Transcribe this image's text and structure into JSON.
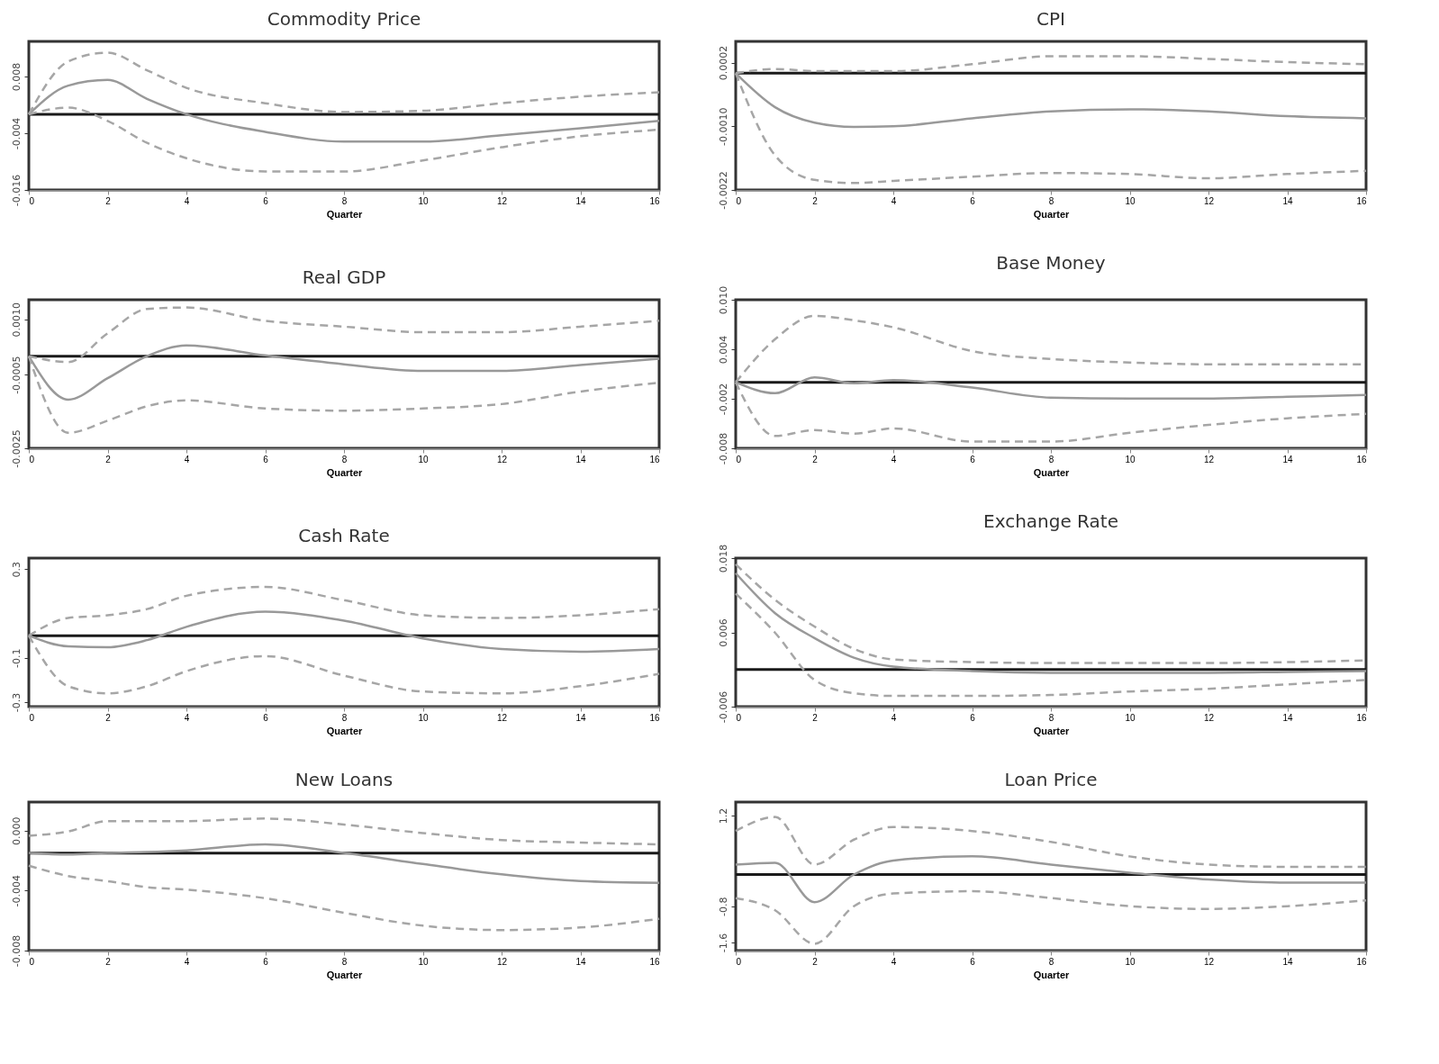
{
  "chart_data": [
    {
      "type": "line",
      "title": "Commodity Price",
      "xlabel": "Quarter",
      "x": [
        0,
        1,
        2,
        3,
        4,
        6,
        8,
        10,
        12,
        14,
        16
      ],
      "xlim": [
        0,
        16
      ],
      "xticks": [
        0,
        2,
        4,
        6,
        8,
        10,
        12,
        14,
        16
      ],
      "ylim": [
        -0.016,
        0.0154
      ],
      "yticks": [
        0.008,
        -0.004,
        -0.016
      ],
      "ref_lines": [
        {
          "axis": "y",
          "value": 0,
          "color": "#1a1a1a"
        }
      ],
      "series": [
        {
          "color": "#999999",
          "line_style": "solid",
          "values": [
            0,
            0.00605,
            0.00725,
            0.00326,
            0,
            -0.00372,
            -0.00577,
            -0.00577,
            -0.00446,
            -0.00298,
            -0.0014
          ]
        },
        {
          "color": "#a6a6a6",
          "line_style": "dashed",
          "values": [
            0,
            0.01116,
            0.01302,
            0.0093,
            0.00558,
            0.00233,
            0.00047,
            0.00074,
            0.00233,
            0.00372,
            0.00465
          ]
        },
        {
          "color": "#a6a6a6",
          "line_style": "dashed",
          "values": [
            0,
            0.0014,
            -0.0014,
            -0.00605,
            -0.0093,
            -0.01209,
            -0.01209,
            -0.00977,
            -0.00698,
            -0.00465,
            -0.00326
          ]
        }
      ]
    },
    {
      "type": "line",
      "title": "CPI",
      "xlabel": "Quarter",
      "x": [
        0,
        1,
        2,
        3,
        4,
        6,
        8,
        10,
        12,
        14,
        16
      ],
      "xlim": [
        0,
        16
      ],
      "xticks": [
        0,
        2,
        4,
        6,
        8,
        10,
        12,
        14,
        16
      ],
      "ylim": [
        -0.0022,
        0.0006
      ],
      "yticks": [
        0.0002,
        {
          "value": -0.001,
          "label": "-0.0010"
        },
        -0.0022
      ],
      "ref_lines": [
        {
          "axis": "y",
          "value": 0,
          "color": "#1a1a1a"
        }
      ],
      "series": [
        {
          "color": "#999999",
          "line_style": "solid",
          "values": [
            0,
            -0.00064,
            -0.00093,
            -0.00101,
            -0.001,
            -0.00085,
            -0.00072,
            -0.00068,
            -0.00072,
            -0.00081,
            -0.00085
          ]
        },
        {
          "color": "#a6a6a6",
          "line_style": "dashed",
          "values": [
            0,
            8e-05,
            4e-05,
            4e-05,
            4e-05,
            0.00017,
            0.00032,
            0.00032,
            0.00027,
            0.00021,
            0.00017
          ]
        },
        {
          "color": "#a6a6a6",
          "line_style": "dashed",
          "values": [
            0,
            -0.00155,
            -0.00201,
            -0.00207,
            -0.00203,
            -0.00195,
            -0.00188,
            -0.0019,
            -0.00198,
            -0.0019,
            -0.00184
          ]
        }
      ]
    },
    {
      "type": "line",
      "title": "Real GDP",
      "xlabel": "Quarter",
      "x": [
        0,
        1,
        2,
        3,
        4,
        6,
        8,
        10,
        12,
        14,
        16
      ],
      "xlim": [
        0,
        16
      ],
      "xticks": [
        0,
        2,
        4,
        6,
        8,
        10,
        12,
        14,
        16
      ],
      "ylim": [
        -0.0025,
        0.00153
      ],
      "yticks": [
        {
          "value": 0.001,
          "label": "0.0010"
        },
        -0.0005,
        -0.0025
      ],
      "ref_lines": [
        {
          "axis": "y",
          "value": 0,
          "color": "#1a1a1a"
        }
      ],
      "series": [
        {
          "color": "#999999",
          "line_style": "solid",
          "values": [
            0,
            -0.00118,
            -0.0006,
            0,
            0.00029,
            2e-05,
            -0.00022,
            -0.0004,
            -0.0004,
            -0.00024,
            -7e-05
          ]
        },
        {
          "color": "#a6a6a6",
          "line_style": "dashed",
          "values": [
            0,
            -0.00016,
            0.00062,
            0.00128,
            0.00132,
            0.00096,
            0.0008,
            0.00065,
            0.00065,
            0.0008,
            0.00096
          ]
        },
        {
          "color": "#a6a6a6",
          "line_style": "dashed",
          "values": [
            0,
            -0.00208,
            -0.00175,
            -0.00136,
            -0.0012,
            -0.00142,
            -0.00148,
            -0.00142,
            -0.0013,
            -0.00096,
            -0.00072
          ]
        }
      ]
    },
    {
      "type": "line",
      "title": "Base Money",
      "xlabel": "Quarter",
      "x": [
        0,
        1,
        2,
        3,
        4,
        6,
        8,
        10,
        12,
        14,
        16
      ],
      "xlim": [
        0,
        16
      ],
      "xticks": [
        0,
        2,
        4,
        6,
        8,
        10,
        12,
        14,
        16
      ],
      "ylim": [
        -0.008,
        0.01
      ],
      "yticks": [
        {
          "value": 0.01,
          "label": "0.010"
        },
        0.004,
        -0.002,
        -0.008
      ],
      "ref_lines": [
        {
          "axis": "y",
          "value": 0,
          "color": "#1a1a1a"
        }
      ],
      "series": [
        {
          "color": "#999999",
          "line_style": "solid",
          "values": [
            0,
            -0.00133,
            0.00059,
            -0.00011,
            0.00027,
            -0.00064,
            -0.00186,
            -0.00197,
            -0.00197,
            -0.00176,
            -0.00154
          ]
        },
        {
          "color": "#a6a6a6",
          "line_style": "dashed",
          "values": [
            0,
            0.00522,
            0.00804,
            0.00751,
            0.00666,
            0.00378,
            0.00282,
            0.0024,
            0.00218,
            0.00218,
            0.00218
          ]
        },
        {
          "color": "#a6a6a6",
          "line_style": "dashed",
          "values": [
            0,
            -0.0065,
            -0.0058,
            -0.00623,
            -0.00559,
            -0.00719,
            -0.00719,
            -0.00612,
            -0.00517,
            -0.00437,
            -0.00383
          ]
        }
      ]
    },
    {
      "type": "line",
      "title": "Cash Rate",
      "xlabel": "Quarter",
      "x": [
        0,
        1,
        2,
        3,
        4,
        6,
        8,
        10,
        12,
        14,
        16
      ],
      "xlim": [
        0,
        16
      ],
      "xticks": [
        0,
        2,
        4,
        6,
        8,
        10,
        12,
        14,
        16
      ],
      "ylim": [
        -0.32,
        0.35
      ],
      "yticks": [
        0.3,
        -0.1,
        -0.3
      ],
      "ref_lines": [
        {
          "axis": "y",
          "value": 0,
          "color": "#1a1a1a"
        }
      ],
      "series": [
        {
          "color": "#999999",
          "line_style": "solid",
          "values": [
            0,
            -0.048,
            -0.052,
            -0.02,
            0.04,
            0.108,
            0.068,
            -0.012,
            -0.06,
            -0.072,
            -0.06
          ]
        },
        {
          "color": "#a6a6a6",
          "line_style": "dashed",
          "values": [
            0,
            0.08,
            0.092,
            0.12,
            0.18,
            0.22,
            0.16,
            0.092,
            0.08,
            0.092,
            0.12
          ]
        },
        {
          "color": "#a6a6a6",
          "line_style": "dashed",
          "values": [
            0,
            -0.228,
            -0.26,
            -0.228,
            -0.16,
            -0.092,
            -0.18,
            -0.252,
            -0.26,
            -0.228,
            -0.172
          ]
        }
      ]
    },
    {
      "type": "line",
      "title": "Exchange Rate",
      "xlabel": "Quarter",
      "x": [
        0,
        1,
        2,
        3,
        4,
        6,
        8,
        10,
        12,
        14,
        16
      ],
      "xlim": [
        0,
        16
      ],
      "xticks": [
        0,
        2,
        4,
        6,
        8,
        10,
        12,
        14,
        16
      ],
      "ylim": [
        -0.006,
        0.018
      ],
      "yticks": [
        0.018,
        0.006,
        -0.006
      ],
      "ref_lines": [
        {
          "axis": "y",
          "value": 0,
          "color": "#1a1a1a"
        }
      ],
      "series": [
        {
          "color": "#999999",
          "line_style": "solid",
          "values": [
            0.01556,
            0.0091,
            0.00507,
            0.00191,
            0.00047,
            -0.00024,
            -0.00053,
            -0.00053,
            -0.00053,
            -0.00039,
            -0.00024
          ]
        },
        {
          "color": "#a6a6a6",
          "line_style": "dashed",
          "values": [
            0.017,
            0.01125,
            0.00694,
            0.00335,
            0.00162,
            0.00119,
            0.00105,
            0.00105,
            0.00105,
            0.00119,
            0.00148
          ]
        },
        {
          "color": "#a6a6a6",
          "line_style": "dashed",
          "values": [
            0.01226,
            0.00593,
            -0.00168,
            -0.00384,
            -0.00427,
            -0.00427,
            -0.00412,
            -0.00355,
            -0.00312,
            -0.0024,
            -0.00168
          ]
        }
      ]
    },
    {
      "type": "line",
      "title": "New Loans",
      "xlabel": "Quarter",
      "x": [
        0,
        1,
        2,
        3,
        4,
        6,
        8,
        10,
        12,
        14,
        16
      ],
      "xlim": [
        0,
        16
      ],
      "xticks": [
        0,
        2,
        4,
        6,
        8,
        10,
        12,
        14,
        16
      ],
      "ylim": [
        -0.008,
        0.0019
      ],
      "yticks": [
        {
          "value": 0,
          "label": "0.000"
        },
        -0.004,
        -0.008
      ],
      "ref_lines": [
        {
          "axis": "y",
          "value": -0.0015,
          "color": "#1a1a1a"
        }
      ],
      "series": [
        {
          "color": "#999999",
          "line_style": "solid",
          "values": [
            -0.00149,
            -0.0016,
            -0.00149,
            -0.00143,
            -0.00132,
            -0.00092,
            -0.00149,
            -0.00223,
            -0.00292,
            -0.00337,
            -0.00349
          ]
        },
        {
          "color": "#a6a6a6",
          "line_style": "dashed",
          "values": [
            -0.00035,
            -6e-05,
            0.00063,
            0.00063,
            0.00063,
            0.0008,
            0.0004,
            -0.00017,
            -0.00063,
            -0.0008,
            -0.00092
          ]
        },
        {
          "color": "#a6a6a6",
          "line_style": "dashed",
          "values": [
            -0.00234,
            -0.00303,
            -0.00337,
            -0.00377,
            -0.00394,
            -0.00451,
            -0.00548,
            -0.00634,
            -0.00663,
            -0.00646,
            -0.00588
          ]
        }
      ]
    },
    {
      "type": "line",
      "title": "Loan Price",
      "xlabel": "Quarter",
      "x": [
        0,
        1,
        2,
        3,
        4,
        6,
        8,
        10,
        12,
        14,
        16
      ],
      "xlim": [
        0,
        16
      ],
      "xticks": [
        0,
        2,
        4,
        6,
        8,
        10,
        12,
        14,
        16
      ],
      "ylim": [
        -1.78,
        1.5
      ],
      "yticks": [
        1.2,
        -0.8,
        -1.6
      ],
      "ref_lines": [
        {
          "axis": "y",
          "value": -0.1,
          "color": "#1a1a1a"
        }
      ],
      "series": [
        {
          "color": "#999999",
          "line_style": "solid",
          "values": [
            0.12,
            0.16,
            -0.71,
            -0.1,
            0.21,
            0.3,
            0.12,
            -0.06,
            -0.21,
            -0.28,
            -0.28
          ]
        },
        {
          "color": "#a6a6a6",
          "line_style": "dashed",
          "values": [
            0.86,
            1.17,
            0.12,
            0.67,
            0.95,
            0.86,
            0.62,
            0.3,
            0.12,
            0.07,
            0.07
          ]
        },
        {
          "color": "#a6a6a6",
          "line_style": "dashed",
          "values": [
            -0.62,
            -0.89,
            -1.63,
            -0.8,
            -0.52,
            -0.47,
            -0.62,
            -0.8,
            -0.86,
            -0.8,
            -0.67
          ]
        }
      ]
    }
  ]
}
